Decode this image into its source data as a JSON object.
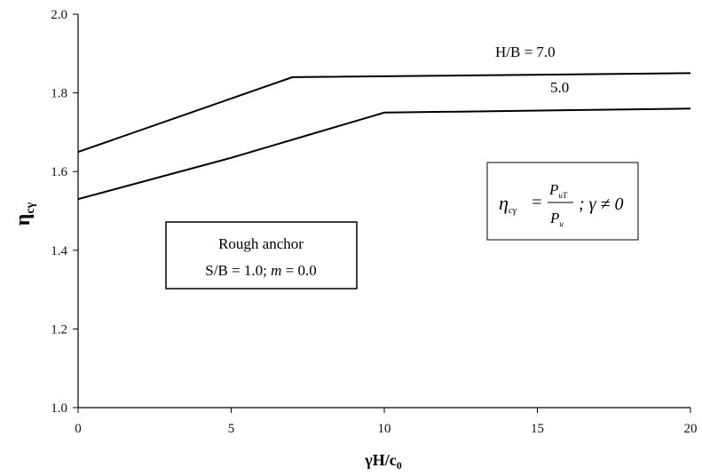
{
  "chart_data": {
    "type": "line",
    "xlabel": {
      "main": "γH/c",
      "sub": "0"
    },
    "ylabel": {
      "main": "η",
      "sub": "cγ"
    },
    "xlim": [
      0,
      20
    ],
    "ylim": [
      1.0,
      2.0
    ],
    "xticks": [
      "0",
      "5",
      "10",
      "15",
      "20"
    ],
    "yticks": [
      "1.0",
      "1.2",
      "1.4",
      "1.6",
      "1.8",
      "2.0"
    ],
    "grid": false,
    "series": [
      {
        "name": "H/B = 7.0",
        "x": [
          0,
          7,
          20
        ],
        "y": [
          1.65,
          1.84,
          1.85
        ]
      },
      {
        "name": "5.0",
        "x": [
          0,
          5,
          10,
          20
        ],
        "y": [
          1.53,
          1.635,
          1.75,
          1.76
        ]
      }
    ],
    "annotations": {
      "anchor_box": {
        "line1": "Rough anchor",
        "line2_prefix": "S/B = 1.0; ",
        "line2_var": "m",
        "line2_suffix": " = 0.0"
      },
      "equation_box": {
        "lhs": "η",
        "lhs_sub": "cγ",
        "equals": "=",
        "numerator": "P",
        "numerator_sub": "uT",
        "denominator": "P",
        "denominator_sub": "u",
        "condition": "; γ ≠ 0"
      }
    },
    "colors": {
      "line": "#000000",
      "axis": "#000000",
      "background": "#ffffff"
    }
  }
}
